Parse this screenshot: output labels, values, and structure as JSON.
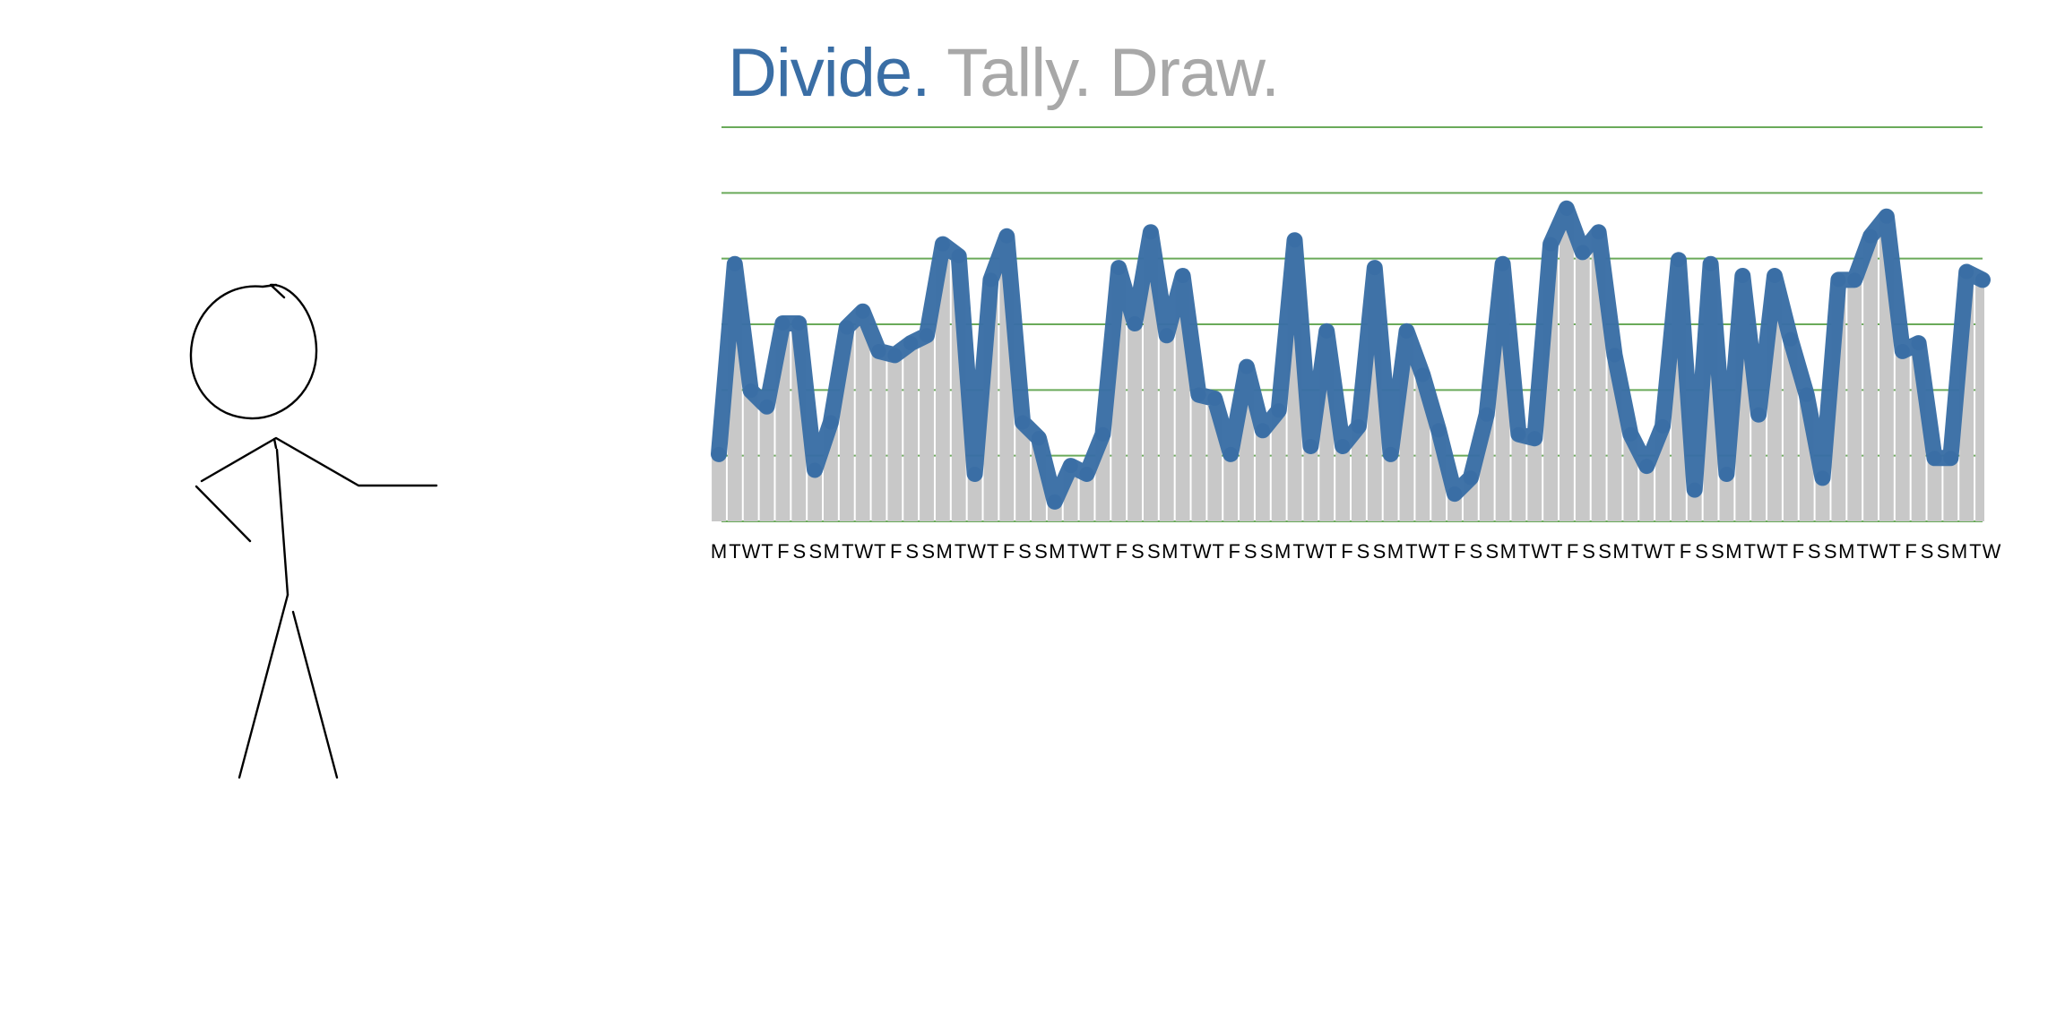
{
  "title": {
    "part1": "Divide.",
    "part2": "Tally. Draw."
  },
  "colors": {
    "accent": "#3a6ea5",
    "muted": "#a8a8a8",
    "bars": "#c8c8c8",
    "grid": "#6aaa5a",
    "figure": "#000000"
  },
  "figure": {
    "icon": "stick-figure-presenter-icon"
  },
  "chart_data": {
    "type": "line",
    "area_under_line": true,
    "grid": true,
    "gridlines": [
      "horizontal"
    ],
    "xlabel": "",
    "ylabel": "",
    "ylim": [
      0,
      100
    ],
    "categories": [
      "M",
      "T",
      "W",
      "T",
      "F",
      "S",
      "S",
      "M",
      "T",
      "W",
      "T",
      "F",
      "S",
      "S",
      "M",
      "T",
      "W",
      "T",
      "F",
      "S",
      "S",
      "M",
      "T",
      "W",
      "T",
      "F",
      "S",
      "S",
      "M",
      "T",
      "W",
      "T",
      "F",
      "S",
      "S",
      "M",
      "T",
      "W",
      "T",
      "F",
      "S",
      "S",
      "M",
      "T",
      "W",
      "T",
      "F",
      "S",
      "S",
      "M",
      "T",
      "W",
      "T",
      "F",
      "S",
      "S",
      "M",
      "T",
      "W",
      "T",
      "F",
      "S",
      "S",
      "M",
      "T",
      "W",
      "T",
      "F",
      "S",
      "S",
      "M",
      "T",
      "W",
      "T",
      "F",
      "S",
      "S",
      "M",
      "T",
      "W"
    ],
    "values": [
      17,
      65,
      33,
      29,
      50,
      50,
      13,
      25,
      49,
      53,
      43,
      42,
      45,
      47,
      70,
      67,
      12,
      61,
      72,
      25,
      21,
      5,
      14,
      12,
      22,
      64,
      50,
      73,
      47,
      62,
      32,
      31,
      17,
      39,
      23,
      28,
      71,
      19,
      48,
      19,
      24,
      64,
      17,
      48,
      37,
      23,
      7,
      11,
      27,
      65,
      22,
      21,
      70,
      79,
      68,
      73,
      42,
      22,
      14,
      24,
      66,
      8,
      65,
      12,
      62,
      27,
      62,
      46,
      32,
      11,
      61,
      61,
      72,
      77,
      43,
      45,
      16,
      16,
      63,
      61
    ]
  }
}
